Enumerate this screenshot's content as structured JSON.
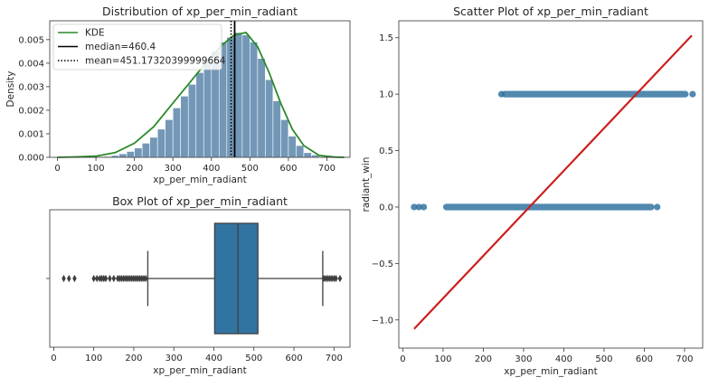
{
  "chart_data": [
    {
      "type": "histogram",
      "title": "Distribution of xp_per_min_radiant",
      "xlabel": "xp_per_min_radiant",
      "ylabel": "Density",
      "xlim": [
        -20,
        760
      ],
      "ylim": [
        0,
        0.0058
      ],
      "xticks": [
        0,
        100,
        200,
        300,
        400,
        500,
        600,
        700
      ],
      "yticks": [
        0.0,
        0.001,
        0.002,
        0.003,
        0.004,
        0.005
      ],
      "ytick_labels": [
        "0.000",
        "0.001",
        "0.002",
        "0.003",
        "0.004",
        "0.005"
      ],
      "bar_color": "#5b86aa",
      "kde_color": "#2a8a2a",
      "bins": {
        "x": [
          100,
          120,
          140,
          160,
          180,
          200,
          220,
          240,
          260,
          280,
          300,
          320,
          340,
          360,
          380,
          400,
          420,
          440,
          460,
          480,
          500,
          520,
          540,
          560,
          580,
          600,
          620,
          640,
          660,
          680
        ],
        "density": [
          2e-05,
          4e-05,
          8e-05,
          0.00015,
          0.00025,
          0.0004,
          0.0006,
          0.00085,
          0.0012,
          0.0016,
          0.0021,
          0.0026,
          0.0031,
          0.0036,
          0.0041,
          0.0045,
          0.0049,
          0.0051,
          0.0053,
          0.0052,
          0.0049,
          0.0042,
          0.0033,
          0.0024,
          0.0016,
          0.0009,
          0.0005,
          0.0002,
          0.0001,
          3e-05
        ]
      },
      "kde": {
        "x": [
          0,
          50,
          100,
          150,
          200,
          250,
          300,
          350,
          400,
          430,
          460,
          490,
          520,
          550,
          580,
          610,
          640,
          680,
          720,
          745
        ],
        "y": [
          0,
          2e-05,
          5e-05,
          0.0002,
          0.0006,
          0.0013,
          0.0023,
          0.0033,
          0.0043,
          0.0048,
          0.0052,
          0.0053,
          0.0047,
          0.0036,
          0.0023,
          0.0012,
          0.0005,
          8e-05,
          1e-05,
          0
        ]
      },
      "median": 460.4,
      "mean": 451.17320399999664,
      "legend": [
        {
          "label": "KDE",
          "style": "solid",
          "color": "#2a8a2a"
        },
        {
          "label": "median=460.4",
          "style": "solid",
          "color": "#000000"
        },
        {
          "label": "mean=451.17320399999664",
          "style": "dotted",
          "color": "#000000"
        }
      ],
      "legend_position": "top-left"
    },
    {
      "type": "box",
      "title": "Box Plot of xp_per_min_radiant",
      "xlabel": "xp_per_min_radiant",
      "xlim": [
        -10,
        740
      ],
      "xticks": [
        0,
        100,
        200,
        300,
        400,
        500,
        600,
        700
      ],
      "q1": 402,
      "median": 460.4,
      "q3": 510,
      "whisker_low": 235,
      "whisker_high": 672,
      "box_color": "#3274a1",
      "outliers_low": [
        25,
        38,
        52,
        100,
        108,
        115,
        120,
        125,
        130,
        140,
        150,
        160,
        165,
        170,
        175,
        180,
        185,
        190,
        195,
        200,
        205,
        210,
        215,
        220,
        225,
        230
      ],
      "outliers_high": [
        675,
        680,
        685,
        690,
        695,
        700,
        705,
        715
      ]
    },
    {
      "type": "scatter",
      "title": "Scatter Plot of xp_per_min_radiant",
      "xlabel": "xp_per_min_radiant",
      "ylabel": "radiant_win",
      "xlim": [
        -10,
        745
      ],
      "ylim": [
        -1.25,
        1.65
      ],
      "xticks": [
        0,
        100,
        200,
        300,
        400,
        500,
        600,
        700
      ],
      "yticks": [
        -1.0,
        -0.5,
        0.0,
        0.5,
        1.0,
        1.5
      ],
      "ytick_labels": [
        "−1.0",
        "−0.5",
        "0.0",
        "0.5",
        "1.0",
        "1.5"
      ],
      "point_color": "#3274a1",
      "line_color": "#cc1f1f",
      "points_y1": {
        "dense_range": [
          245,
          710
        ],
        "isolated": [
          245,
          720
        ]
      },
      "points_y0": {
        "dense_range": [
          100,
          625
        ],
        "isolated": [
          28,
          40,
          52,
          632
        ]
      },
      "regression": {
        "x": [
          28,
          718
        ],
        "y": [
          -1.08,
          1.52
        ]
      }
    }
  ]
}
